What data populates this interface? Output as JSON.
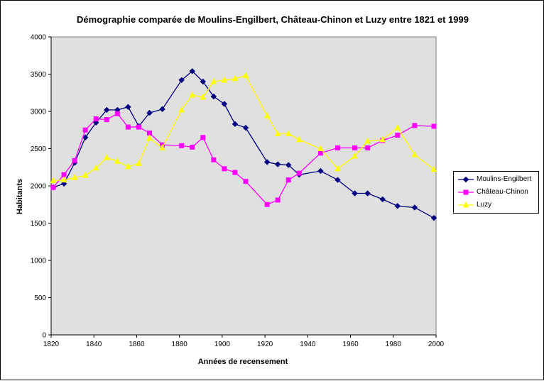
{
  "chart_data": {
    "type": "line",
    "title": "Démographie comparée de Moulins-Engilbert, Château-Chinon et Luzy entre 1821 et 1999",
    "xlabel": "Années de recensement",
    "ylabel": "Habitants",
    "xlim": [
      1820,
      2000
    ],
    "ylim": [
      0,
      4000
    ],
    "x_ticks": [
      1820,
      1840,
      1860,
      1880,
      1900,
      1920,
      1940,
      1960,
      1980,
      2000
    ],
    "y_ticks": [
      0,
      500,
      1000,
      1500,
      2000,
      2500,
      3000,
      3500,
      4000
    ],
    "grid": false,
    "plot_background": "#e0e0e0",
    "legend_position": "right",
    "series": [
      {
        "name": "Moulins-Engilbert",
        "color": "#000080",
        "marker": "diamond",
        "x": [
          1821,
          1826,
          1831,
          1836,
          1841,
          1846,
          1851,
          1856,
          1861,
          1866,
          1872,
          1881,
          1886,
          1891,
          1896,
          1901,
          1906,
          1911,
          1921,
          1926,
          1931,
          1936,
          1946,
          1954,
          1962,
          1968,
          1975,
          1982,
          1990,
          1999
        ],
        "y": [
          1980,
          2030,
          2310,
          2650,
          2850,
          3020,
          3020,
          3060,
          2800,
          2980,
          3030,
          3420,
          3540,
          3400,
          3200,
          3100,
          2830,
          2780,
          2320,
          2290,
          2280,
          2150,
          2200,
          2080,
          1900,
          1900,
          1820,
          1730,
          1710,
          1570
        ]
      },
      {
        "name": "Château-Chinon",
        "color": "#ff00ff",
        "marker": "square",
        "x": [
          1821,
          1826,
          1831,
          1836,
          1841,
          1846,
          1851,
          1856,
          1861,
          1866,
          1872,
          1881,
          1886,
          1891,
          1896,
          1901,
          1906,
          1911,
          1921,
          1926,
          1931,
          1936,
          1946,
          1954,
          1962,
          1968,
          1975,
          1982,
          1990,
          1999
        ],
        "y": [
          1980,
          2150,
          2340,
          2750,
          2900,
          2890,
          2970,
          2790,
          2790,
          2710,
          2550,
          2540,
          2520,
          2650,
          2350,
          2230,
          2180,
          2060,
          1750,
          1810,
          2080,
          2170,
          2440,
          2510,
          2510,
          2510,
          2610,
          2680,
          2810,
          2800
        ]
      },
      {
        "name": "Luzy",
        "color": "#ffff00",
        "marker": "triangle",
        "x": [
          1821,
          1826,
          1831,
          1836,
          1841,
          1846,
          1851,
          1856,
          1861,
          1866,
          1872,
          1881,
          1886,
          1891,
          1896,
          1901,
          1906,
          1911,
          1921,
          1926,
          1931,
          1936,
          1946,
          1954,
          1962,
          1968,
          1975,
          1982,
          1990,
          1999
        ],
        "y": [
          2070,
          2080,
          2110,
          2140,
          2240,
          2380,
          2330,
          2260,
          2300,
          2640,
          2510,
          3020,
          3220,
          3190,
          3400,
          3420,
          3440,
          3480,
          2940,
          2700,
          2700,
          2620,
          2500,
          2230,
          2400,
          2600,
          2620,
          2780,
          2420,
          2220
        ]
      }
    ]
  }
}
